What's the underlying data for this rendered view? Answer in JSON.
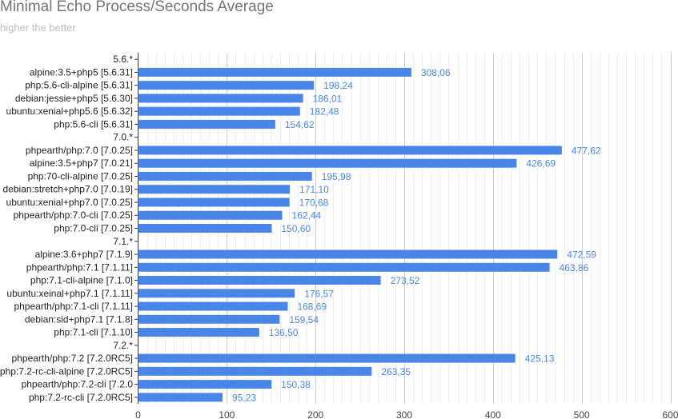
{
  "chart_data": {
    "type": "bar",
    "orientation": "horizontal",
    "title": "Minimal Echo Process/Seconds Average",
    "subtitle": "higher the better",
    "xlim": [
      0,
      600
    ],
    "x_ticks": [
      0,
      100,
      200,
      300,
      400,
      500,
      600
    ],
    "grid": true,
    "legend": "none",
    "bar_color": "#4a86e8",
    "label_color": "#4a86e8",
    "rows": [
      {
        "label": "5.6.*",
        "group": true
      },
      {
        "label": "alpine:3.5+php5 [5.6.31]",
        "value": 308.06,
        "value_label": "308,06"
      },
      {
        "label": "php:5.6-cli-alpine [5.6.31]",
        "value": 198.24,
        "value_label": "198,24"
      },
      {
        "label": "debian:jessie+php5 [5.6.30]",
        "value": 186.01,
        "value_label": "186,01"
      },
      {
        "label": "ubuntu:xenial+php5.6 [5.6.32]",
        "value": 182.48,
        "value_label": "182,48"
      },
      {
        "label": "php:5.6-cli [5.6.31]",
        "value": 154.62,
        "value_label": "154,62"
      },
      {
        "label": "7.0.*",
        "group": true
      },
      {
        "label": "phpearth/php:7.0 [7.0.25]",
        "value": 477.62,
        "value_label": "477,62"
      },
      {
        "label": "alpine:3.5+php7 [7.0.21]",
        "value": 426.69,
        "value_label": "426,69"
      },
      {
        "label": "php:70-cli-alpine [7.0.25]",
        "value": 195.98,
        "value_label": "195,98"
      },
      {
        "label": "debian:stretch+php7.0 [7.0.19]",
        "value": 171.1,
        "value_label": "171,10"
      },
      {
        "label": "ubuntu:xenial+php7.0 [7.0.25]",
        "value": 170.68,
        "value_label": "170,68"
      },
      {
        "label": "phpearth/php:7.0-cli [7.0.25]",
        "value": 162.44,
        "value_label": "162,44"
      },
      {
        "label": "php:7.0-cli [7.0.25]",
        "value": 150.6,
        "value_label": "150,60"
      },
      {
        "label": "7.1.*",
        "group": true
      },
      {
        "label": "alpine:3.6+php7 [7.1.9]",
        "value": 472.59,
        "value_label": "472,59"
      },
      {
        "label": "phpearth/php:7.1 [7.1.11]",
        "value": 463.86,
        "value_label": "463,86"
      },
      {
        "label": "php:7.1-cli-alpine [7.1.0]",
        "value": 273.52,
        "value_label": "273,52"
      },
      {
        "label": "ubuntu:xeinal+php7.1 [7.1.11]",
        "value": 176.57,
        "value_label": "176,57"
      },
      {
        "label": "phpearth/php:7.1-cli [7.1.11]",
        "value": 168.69,
        "value_label": "168,69"
      },
      {
        "label": "debian:sid+php7.1 [7.1.8]",
        "value": 159.54,
        "value_label": "159,54"
      },
      {
        "label": "php:7.1-cli [7.1.10]",
        "value": 136.5,
        "value_label": "136,50"
      },
      {
        "label": "7.2.*",
        "group": true
      },
      {
        "label": "phpearth/php:7.2 [7.2.0RC5]",
        "value": 425.13,
        "value_label": "425,13"
      },
      {
        "label": "php:7.2-rc-cli-alpine [7.2.0RC5]",
        "value": 263.35,
        "value_label": "263,35"
      },
      {
        "label": "phpearth/php:7.2-cli [7.2.0",
        "value": 150.38,
        "value_label": "150,38"
      },
      {
        "label": "php:7.2-rc-cli [7.2.0RC5]",
        "value": 95.23,
        "value_label": "95,23"
      }
    ]
  }
}
